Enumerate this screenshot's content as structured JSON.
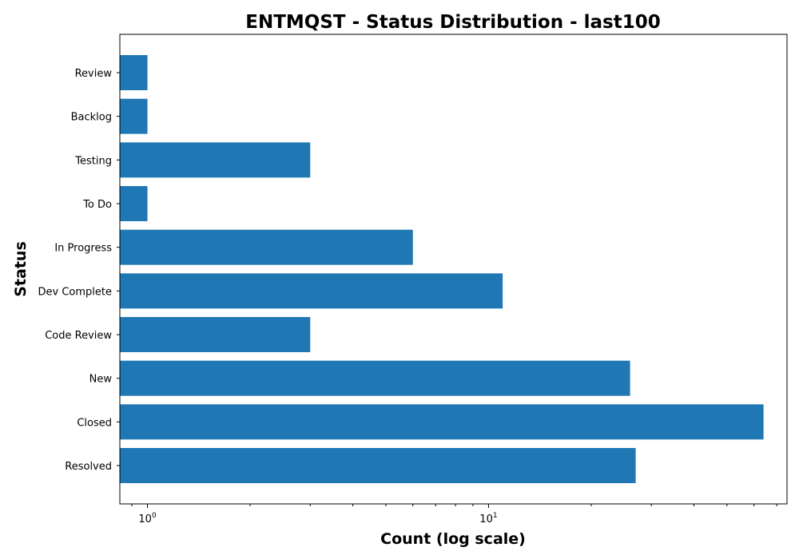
{
  "chart_data": {
    "type": "bar",
    "orientation": "horizontal",
    "title": "ENTMQST - Status Distribution - last100",
    "xlabel": "Count (log scale)",
    "ylabel": "Status",
    "xscale": "log",
    "xlim": [
      0.83,
      75
    ],
    "categories": [
      "Resolved",
      "Closed",
      "New",
      "Code Review",
      "Dev Complete",
      "In Progress",
      "To Do",
      "Testing",
      "Backlog",
      "Review"
    ],
    "values": [
      27,
      64,
      26,
      3,
      11,
      6,
      1,
      3,
      1,
      1
    ],
    "major_ticks": [
      {
        "value": 1,
        "base": "10",
        "exp": "0"
      },
      {
        "value": 10,
        "base": "10",
        "exp": "1"
      }
    ],
    "bar_color": "#1f77b4",
    "grid": false,
    "legend": "none"
  }
}
